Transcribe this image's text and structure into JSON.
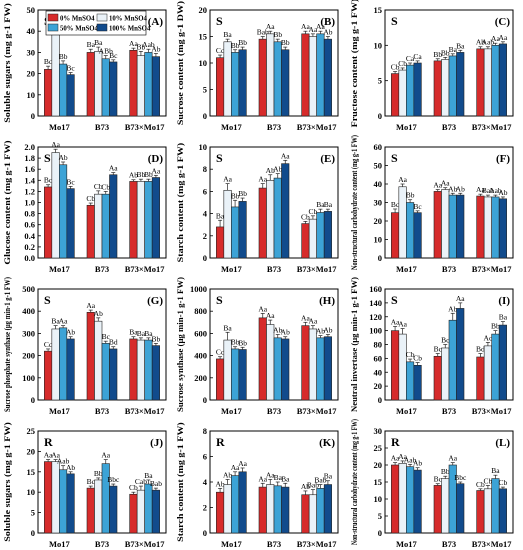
{
  "legend": {
    "items": [
      {
        "label": "0% MnSO4",
        "color": "#d62b2b"
      },
      {
        "label": "10% MnSO4",
        "color": "#eaf2f8"
      },
      {
        "label": "50% MnSO4",
        "color": "#3ca3d6"
      },
      {
        "label": "100% MnSO4",
        "color": "#114b8c"
      }
    ]
  },
  "chart_data": [
    {
      "panel": "(A)",
      "tissue": "S",
      "type": "bar",
      "ylabel": "Soluble sugars (mg g-1 FW)",
      "ylim": [
        0,
        50
      ],
      "yticks": [
        0,
        10,
        20,
        30,
        40,
        50
      ],
      "categories": [
        "Mo17",
        "B73",
        "B73×Mo17"
      ],
      "series": [
        {
          "name": "0% MnSO4",
          "values": [
            22,
            30,
            31
          ],
          "errors": [
            1.5,
            1.5,
            1
          ],
          "letters": [
            "Bc",
            "Ba",
            "Aa"
          ]
        },
        {
          "name": "10% MnSO4",
          "values": [
            45,
            30.5,
            28.5
          ],
          "errors": [
            2,
            2,
            2
          ],
          "letters": [
            "Aa",
            "Ba",
            "Bb"
          ]
        },
        {
          "name": "50% MnSO4",
          "values": [
            24.5,
            27,
            30
          ],
          "errors": [
            1.5,
            1.5,
            1.5
          ],
          "letters": [
            "Bb",
            "ABb",
            "Aab"
          ]
        },
        {
          "name": "100% MnSO4",
          "values": [
            19.5,
            25.5,
            28
          ],
          "errors": [
            1,
            1,
            1.5
          ],
          "letters": [
            "Bc",
            "Bc",
            "Ab"
          ]
        }
      ]
    },
    {
      "panel": "(B)",
      "tissue": "S",
      "type": "bar",
      "ylabel": "Sucrose content (mg g-1 DW)",
      "ylim": [
        0,
        20
      ],
      "yticks": [
        0,
        5,
        10,
        15,
        20
      ],
      "categories": [
        "Mo17",
        "B73",
        "B73×Mo17"
      ],
      "series": [
        {
          "name": "0% MnSO4",
          "values": [
            11,
            14.5,
            15.5
          ],
          "errors": [
            0.5,
            0.5,
            0.5
          ],
          "letters": [
            "Cc",
            "Bab",
            "Aa"
          ]
        },
        {
          "name": "10% MnSO4",
          "values": [
            14,
            15.5,
            15
          ],
          "errors": [
            0.5,
            0.5,
            0.5
          ],
          "letters": [
            "Ba",
            "Aa",
            "Aa"
          ]
        },
        {
          "name": "50% MnSO4",
          "values": [
            12,
            14,
            15.5
          ],
          "errors": [
            0.5,
            0.5,
            0.5
          ],
          "letters": [
            "Bb",
            "Bb",
            "Aa"
          ]
        },
        {
          "name": "100% MnSO4",
          "values": [
            12.5,
            12.5,
            14.5
          ],
          "errors": [
            0.5,
            0.5,
            0.5
          ],
          "letters": [
            "Bb",
            "Bb",
            "Ab"
          ]
        }
      ]
    },
    {
      "panel": "(C)",
      "tissue": "S",
      "type": "bar",
      "ylabel": "Fructose content (mg g-1 FW)",
      "ylim": [
        0,
        15
      ],
      "yticks": [
        0,
        5,
        10,
        15
      ],
      "categories": [
        "Mo17",
        "B73",
        "B73×Mo17"
      ],
      "series": [
        {
          "name": "0% MnSO4",
          "values": [
            6,
            7.8,
            9.5
          ],
          "errors": [
            0.3,
            0.3,
            0.3
          ],
          "letters": [
            "Cb",
            "Bb",
            "Ab"
          ]
        },
        {
          "name": "10% MnSO4",
          "values": [
            6.5,
            8,
            9.5
          ],
          "errors": [
            0.3,
            0.3,
            0.3
          ],
          "letters": [
            "Cb",
            "Bb",
            "Aab"
          ]
        },
        {
          "name": "50% MnSO4",
          "values": [
            7.2,
            8.5,
            10
          ],
          "errors": [
            0.3,
            0.3,
            0.3
          ],
          "letters": [
            "Ca",
            "Ba",
            "Aa"
          ]
        },
        {
          "name": "100% MnSO4",
          "values": [
            7.5,
            9,
            10.2
          ],
          "errors": [
            0.3,
            0.3,
            0.3
          ],
          "letters": [
            "Ca",
            "Ba",
            "Aa"
          ]
        }
      ]
    },
    {
      "panel": "(D)",
      "tissue": "S",
      "type": "bar",
      "ylabel": "Glucose content (mg g-1 FW)",
      "ylim": [
        0,
        2.0
      ],
      "yticks": [
        0.0,
        0.2,
        0.4,
        0.6,
        0.8,
        1.0,
        1.2,
        1.4,
        1.6,
        1.8,
        2.0
      ],
      "categories": [
        "Mo17",
        "B73",
        "B73×Mo17"
      ],
      "series": [
        {
          "name": "0% MnSO4",
          "values": [
            1.28,
            0.95,
            1.38
          ],
          "errors": [
            0.04,
            0.04,
            0.03
          ],
          "letters": [
            "Bc",
            "Cb",
            "Ab"
          ]
        },
        {
          "name": "10% MnSO4",
          "values": [
            1.9,
            1.15,
            1.38
          ],
          "errors": [
            0.06,
            0.06,
            0.04
          ],
          "letters": [
            "Aa",
            "Cb",
            "Bb"
          ]
        },
        {
          "name": "50% MnSO4",
          "values": [
            1.68,
            1.15,
            1.38
          ],
          "errors": [
            0.05,
            0.05,
            0.04
          ],
          "letters": [
            "Ab",
            "Cb",
            "Bb"
          ]
        },
        {
          "name": "100% MnSO4",
          "values": [
            1.25,
            1.5,
            1.45
          ],
          "errors": [
            0.04,
            0.04,
            0.04
          ],
          "letters": [
            "Bc",
            "Aa",
            "Aa"
          ]
        }
      ]
    },
    {
      "panel": "(E)",
      "tissue": "S",
      "type": "bar",
      "ylabel": "Starch content (mg g-1 FW)",
      "ylim": [
        0,
        10
      ],
      "yticks": [
        0,
        2,
        4,
        6,
        8,
        10
      ],
      "categories": [
        "Mo17",
        "B73",
        "B73×Mo17"
      ],
      "series": [
        {
          "name": "0% MnSO4",
          "values": [
            2.8,
            6.3,
            3.1
          ],
          "errors": [
            0.6,
            0.4,
            0.2
          ],
          "letters": [
            "Ba",
            "Aa",
            "Cb"
          ]
        },
        {
          "name": "10% MnSO4",
          "values": [
            6.1,
            7,
            3.5
          ],
          "errors": [
            0.6,
            0.5,
            0.3
          ],
          "letters": [
            "Aa",
            "Ab",
            "Cb"
          ]
        },
        {
          "name": "50% MnSO4",
          "values": [
            4.6,
            7.2,
            4.1
          ],
          "errors": [
            0.6,
            0.4,
            0.3
          ],
          "letters": [
            "Bb",
            "Ab",
            "Ba"
          ]
        },
        {
          "name": "100% MnSO4",
          "values": [
            5.1,
            8.5,
            4.2
          ],
          "errors": [
            0.3,
            0.3,
            0.2
          ],
          "letters": [
            "Bb",
            "Aa",
            "Ba"
          ]
        }
      ]
    },
    {
      "panel": "(F)",
      "tissue": "S",
      "type": "bar",
      "ylabel": "Non-structural carbohydrate content (mg g-1 FW)",
      "ylim": [
        0,
        60
      ],
      "yticks": [
        0,
        10,
        20,
        30,
        40,
        50,
        60
      ],
      "categories": [
        "Mo17",
        "B73",
        "B73×Mo17"
      ],
      "series": [
        {
          "name": "0% MnSO4",
          "values": [
            24.5,
            36,
            33.5
          ],
          "errors": [
            2,
            1,
            1
          ],
          "letters": [
            "Bc",
            "Aa",
            "Aa"
          ]
        },
        {
          "name": "10% MnSO4",
          "values": [
            38.5,
            37,
            33
          ],
          "errors": [
            1.5,
            1,
            1
          ],
          "letters": [
            "Aa",
            "Aa",
            "Bab"
          ]
        },
        {
          "name": "50% MnSO4",
          "values": [
            30,
            34,
            33
          ],
          "errors": [
            1.5,
            1,
            1
          ],
          "letters": [
            "Bb",
            "Ab",
            "Aab"
          ]
        },
        {
          "name": "100% MnSO4",
          "values": [
            24.5,
            34,
            32
          ],
          "errors": [
            1,
            1,
            1
          ],
          "letters": [
            "Bc",
            "Ab",
            "Ab"
          ]
        }
      ]
    },
    {
      "panel": "(G)",
      "tissue": "S",
      "type": "bar",
      "ylabel": "Sucrose phosphate synthase (μg min-1 g-1 FW)",
      "ylim": [
        0,
        500
      ],
      "yticks": [
        0,
        100,
        200,
        300,
        400,
        500
      ],
      "categories": [
        "Mo17",
        "B73",
        "B73×Mo17"
      ],
      "series": [
        {
          "name": "0% MnSO4",
          "values": [
            220,
            395,
            275
          ],
          "errors": [
            10,
            10,
            10
          ],
          "letters": [
            "Cc",
            "Aa",
            "Ba"
          ]
        },
        {
          "name": "10% MnSO4",
          "values": [
            320,
            355,
            270
          ],
          "errors": [
            15,
            15,
            10
          ],
          "letters": [
            "Ba",
            "Ab",
            "Ba"
          ]
        },
        {
          "name": "50% MnSO4",
          "values": [
            325,
            255,
            270
          ],
          "errors": [
            10,
            10,
            10
          ],
          "letters": [
            "Aa",
            "Bc",
            "Ba"
          ]
        },
        {
          "name": "100% MnSO4",
          "values": [
            275,
            230,
            245
          ],
          "errors": [
            10,
            10,
            10
          ],
          "letters": [
            "Ab",
            "Bd",
            "Bb"
          ]
        }
      ]
    },
    {
      "panel": "(H)",
      "tissue": "S",
      "type": "bar",
      "ylabel": "Sucrose synthase (μg min-1 g-1 FW)",
      "ylim": [
        0,
        1000
      ],
      "yticks": [
        0,
        200,
        400,
        600,
        800,
        1000
      ],
      "categories": [
        "Mo17",
        "B73",
        "B73×Mo17"
      ],
      "series": [
        {
          "name": "0% MnSO4",
          "values": [
            370,
            740,
            670
          ],
          "errors": [
            20,
            40,
            30
          ],
          "letters": [
            "Cc",
            "Aa",
            "Aa"
          ]
        },
        {
          "name": "10% MnSO4",
          "values": [
            540,
            680,
            640
          ],
          "errors": [
            70,
            40,
            30
          ],
          "letters": [
            "Ba",
            "Aa",
            "Aa"
          ]
        },
        {
          "name": "50% MnSO4",
          "values": [
            460,
            560,
            560
          ],
          "errors": [
            20,
            30,
            20
          ],
          "letters": [
            "Bb",
            "Ab",
            "Ab"
          ]
        },
        {
          "name": "100% MnSO4",
          "values": [
            455,
            550,
            570
          ],
          "errors": [
            20,
            20,
            20
          ],
          "letters": [
            "Bb",
            "Ab",
            "Ab"
          ]
        }
      ]
    },
    {
      "panel": "(I)",
      "tissue": "S",
      "type": "bar",
      "ylabel": "Neutral invertase (μg min-1 g-1 FW)",
      "ylim": [
        0,
        160
      ],
      "yticks": [
        0,
        20,
        40,
        60,
        80,
        100,
        120,
        140,
        160
      ],
      "categories": [
        "Mo17",
        "B73",
        "B73×Mo17"
      ],
      "series": [
        {
          "name": "0% MnSO4",
          "values": [
            100,
            63,
            62
          ],
          "errors": [
            6,
            4,
            5
          ],
          "letters": [
            "Aa",
            "Bc",
            "Bd"
          ]
        },
        {
          "name": "10% MnSO4",
          "values": [
            95,
            75,
            78
          ],
          "errors": [
            8,
            5,
            5
          ],
          "letters": [
            "Aa",
            "Bc",
            "Ac"
          ]
        },
        {
          "name": "50% MnSO4",
          "values": [
            55,
            115,
            95
          ],
          "errors": [
            4,
            10,
            5
          ],
          "letters": [
            "Cb",
            "Ab",
            "Bb"
          ]
        },
        {
          "name": "100% MnSO4",
          "values": [
            50,
            132,
            108
          ],
          "errors": [
            4,
            8,
            5
          ],
          "letters": [
            "Cb",
            "Aa",
            "Ba"
          ]
        }
      ]
    },
    {
      "panel": "(J)",
      "tissue": "R",
      "type": "bar",
      "ylabel": "Soluble sugars (mg g-1 FW)",
      "ylim": [
        0,
        25
      ],
      "yticks": [
        0,
        5,
        10,
        15,
        20,
        25
      ],
      "categories": [
        "Mo17",
        "B73",
        "B73×Mo17"
      ],
      "series": [
        {
          "name": "0% MnSO4",
          "values": [
            17.5,
            11,
            9.5
          ],
          "errors": [
            0.5,
            0.5,
            0.5
          ],
          "letters": [
            "Aa",
            "Bc",
            "Cb"
          ]
        },
        {
          "name": "10% MnSO4",
          "values": [
            17.5,
            13,
            10.5
          ],
          "errors": [
            0.5,
            0.5,
            1
          ],
          "letters": [
            "Aa",
            "Bb",
            "Cab"
          ]
        },
        {
          "name": "50% MnSO4",
          "values": [
            15.5,
            17,
            12
          ],
          "errors": [
            1,
            1,
            1
          ],
          "letters": [
            "Aab",
            "Aa",
            "Ba"
          ]
        },
        {
          "name": "100% MnSO4",
          "values": [
            14.5,
            11.5,
            10.5
          ],
          "errors": [
            0.5,
            0.5,
            0.5
          ],
          "letters": [
            "Ab",
            "Bbc",
            "Bab"
          ]
        }
      ]
    },
    {
      "panel": "(K)",
      "tissue": "R",
      "type": "bar",
      "ylabel": "Starch content (mg g-1 FW)",
      "ylim": [
        0,
        8
      ],
      "yticks": [
        0,
        2,
        4,
        6,
        8
      ],
      "categories": [
        "Mo17",
        "B73",
        "B73×Mo17"
      ],
      "series": [
        {
          "name": "0% MnSO4",
          "values": [
            3.2,
            3.6,
            3
          ],
          "errors": [
            0.3,
            0.3,
            0.3
          ],
          "letters": [
            "Ab",
            "Aa",
            "Ab"
          ]
        },
        {
          "name": "10% MnSO4",
          "values": [
            3.8,
            3.8,
            3
          ],
          "errors": [
            0.4,
            0.4,
            0.4
          ],
          "letters": [
            "Ab",
            "Aa",
            "Bab"
          ]
        },
        {
          "name": "50% MnSO4",
          "values": [
            4.5,
            3.7,
            3.5
          ],
          "errors": [
            0.3,
            0.3,
            0.3
          ],
          "letters": [
            "Aa",
            "Ba",
            "Bab"
          ]
        },
        {
          "name": "100% MnSO4",
          "values": [
            4.8,
            3.6,
            3.8
          ],
          "errors": [
            0.3,
            0.3,
            0.3
          ],
          "letters": [
            "Aa",
            "Ba",
            "Ba"
          ]
        }
      ]
    },
    {
      "panel": "(L)",
      "tissue": "R",
      "type": "bar",
      "ylabel": "Non-structural carbohydrate content (mg g-1 FW)",
      "ylim": [
        0,
        30
      ],
      "yticks": [
        0,
        5,
        10,
        15,
        20,
        25,
        30
      ],
      "categories": [
        "Mo17",
        "B73",
        "B73×Mo17"
      ],
      "series": [
        {
          "name": "0% MnSO4",
          "values": [
            20,
            14,
            12.5
          ],
          "errors": [
            0.7,
            0.5,
            0.5
          ],
          "letters": [
            "Aa",
            "Bc",
            "Cb"
          ]
        },
        {
          "name": "10% MnSO4",
          "values": [
            20.5,
            16,
            13
          ],
          "errors": [
            0.7,
            0.7,
            1
          ],
          "letters": [
            "Aa",
            "Bb",
            "Cb"
          ]
        },
        {
          "name": "50% MnSO4",
          "values": [
            19.5,
            20,
            16
          ],
          "errors": [
            0.7,
            0.7,
            1
          ],
          "letters": [
            "Aab",
            "Aa",
            "Ba"
          ]
        },
        {
          "name": "100% MnSO4",
          "values": [
            18.5,
            14.5,
            13
          ],
          "errors": [
            0.7,
            0.5,
            0.5
          ],
          "letters": [
            "Ab",
            "Bbc",
            "Cb"
          ]
        }
      ]
    }
  ]
}
